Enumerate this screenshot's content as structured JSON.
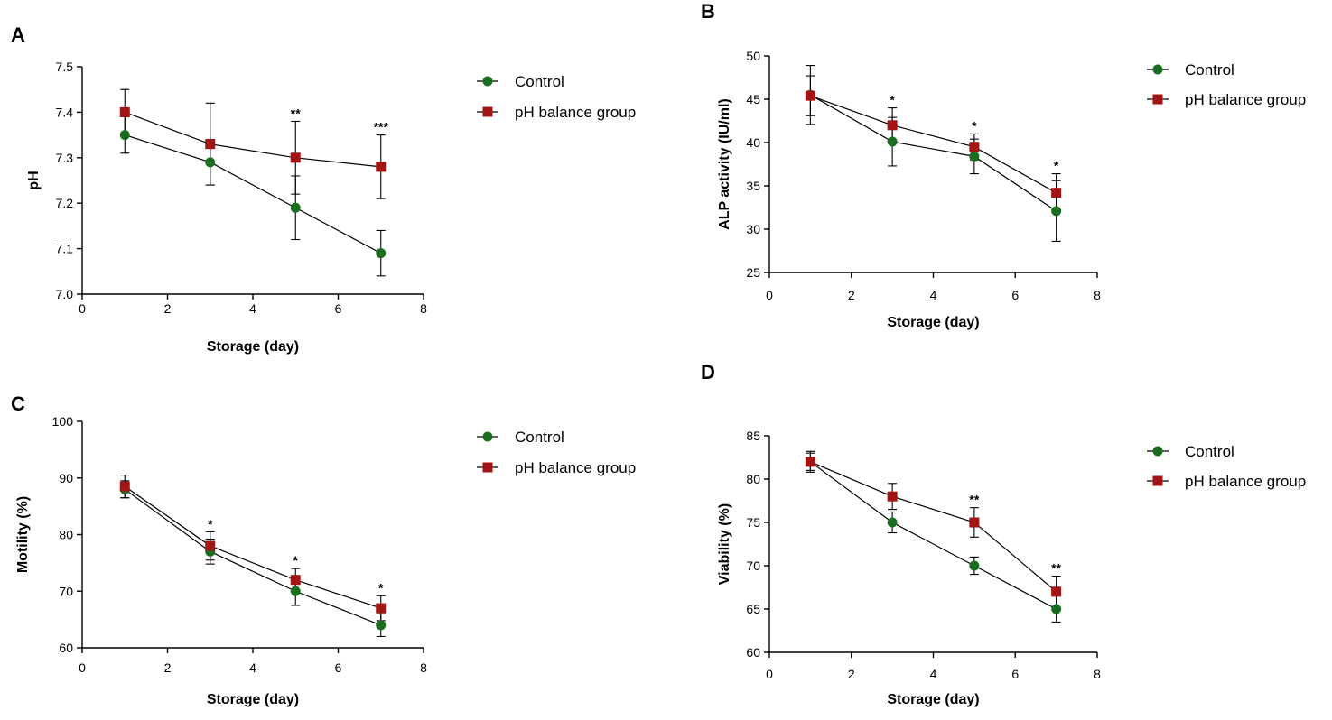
{
  "colors": {
    "control": "#1b6e20",
    "ph_balance": "#a31515",
    "axis": "#000000"
  },
  "chart_data": [
    {
      "panel": "A",
      "type": "line",
      "xlabel": "Storage (day)",
      "ylabel": "pH",
      "xlim": [
        0,
        8
      ],
      "ylim": [
        7.0,
        7.5
      ],
      "xticks": [
        0,
        2,
        4,
        6,
        8
      ],
      "xtick_labels": [
        "0",
        "2",
        "4",
        "6",
        "8"
      ],
      "yticks": [
        7.0,
        7.1,
        7.2,
        7.3,
        7.4,
        7.5
      ],
      "ytick_labels": [
        "7.0",
        "7.1",
        "7.2",
        "7.3",
        "7.4",
        "7.5"
      ],
      "x": [
        1,
        3,
        5,
        7
      ],
      "series": [
        {
          "name": "Control",
          "marker": "circle",
          "values": [
            7.35,
            7.29,
            7.19,
            7.09
          ],
          "err": [
            0.04,
            0.05,
            0.07,
            0.05
          ]
        },
        {
          "name": "pH balance group",
          "marker": "square",
          "values": [
            7.4,
            7.33,
            7.3,
            7.28
          ],
          "err": [
            0.05,
            0.09,
            0.08,
            0.07
          ]
        }
      ],
      "annotations": [
        {
          "x": 5,
          "text": "**"
        },
        {
          "x": 7,
          "text": "***"
        }
      ],
      "legend": "right"
    },
    {
      "panel": "B",
      "type": "line",
      "xlabel": "Storage (day)",
      "ylabel": "ALP activity (IU/ml)",
      "xlim": [
        0,
        8
      ],
      "ylim": [
        25,
        50
      ],
      "xticks": [
        0,
        2,
        4,
        6,
        8
      ],
      "xtick_labels": [
        "0",
        "2",
        "4",
        "6",
        "8"
      ],
      "yticks": [
        25,
        30,
        35,
        40,
        45,
        50
      ],
      "ytick_labels": [
        "25",
        "30",
        "35",
        "40",
        "45",
        "50"
      ],
      "x": [
        1,
        3,
        5,
        7
      ],
      "series": [
        {
          "name": "Control",
          "marker": "circle",
          "values": [
            45.5,
            40.1,
            38.4,
            32.1
          ],
          "err": [
            3.4,
            2.8,
            2.0,
            3.5
          ]
        },
        {
          "name": "pH balance group",
          "marker": "square",
          "values": [
            45.4,
            42.0,
            39.5,
            34.2
          ],
          "err": [
            2.3,
            2.0,
            1.5,
            2.2
          ]
        }
      ],
      "annotations": [
        {
          "x": 3,
          "text": "*"
        },
        {
          "x": 5,
          "text": "*"
        },
        {
          "x": 7,
          "text": "*"
        }
      ],
      "legend": "right"
    },
    {
      "panel": "C",
      "type": "line",
      "xlabel": "Storage (day)",
      "ylabel": "Motility (%)",
      "xlim": [
        0,
        8
      ],
      "ylim": [
        60,
        100
      ],
      "xticks": [
        0,
        2,
        4,
        6,
        8
      ],
      "xtick_labels": [
        "0",
        "2",
        "4",
        "6",
        "8"
      ],
      "yticks": [
        60,
        70,
        80,
        90,
        100
      ],
      "ytick_labels": [
        "60",
        "70",
        "80",
        "90",
        "100"
      ],
      "x": [
        1,
        3,
        5,
        7
      ],
      "series": [
        {
          "name": "Control",
          "marker": "circle",
          "values": [
            88,
            77,
            70,
            64
          ],
          "err": [
            1.5,
            2.2,
            2.5,
            2.0
          ]
        },
        {
          "name": "pH balance group",
          "marker": "square",
          "values": [
            88.5,
            78,
            72,
            67
          ],
          "err": [
            2.0,
            2.5,
            2.0,
            2.2
          ]
        }
      ],
      "annotations": [
        {
          "x": 3,
          "text": "*"
        },
        {
          "x": 5,
          "text": "*"
        },
        {
          "x": 7,
          "text": "*"
        }
      ],
      "legend": "right"
    },
    {
      "panel": "D",
      "type": "line",
      "xlabel": "Storage (day)",
      "ylabel": "Viability (%)",
      "xlim": [
        0,
        8
      ],
      "ylim": [
        60,
        85
      ],
      "xticks": [
        0,
        2,
        4,
        6,
        8
      ],
      "xtick_labels": [
        "0",
        "2",
        "4",
        "6",
        "8"
      ],
      "yticks": [
        60,
        65,
        70,
        75,
        80,
        85
      ],
      "ytick_labels": [
        "60",
        "65",
        "70",
        "75",
        "80",
        "85"
      ],
      "x": [
        1,
        3,
        5,
        7
      ],
      "series": [
        {
          "name": "Control",
          "marker": "circle",
          "values": [
            82,
            75,
            70,
            65
          ],
          "err": [
            1.2,
            1.2,
            1.0,
            1.5
          ]
        },
        {
          "name": "pH balance group",
          "marker": "square",
          "values": [
            82,
            78,
            75,
            67
          ],
          "err": [
            1.0,
            1.5,
            1.7,
            1.8
          ]
        }
      ],
      "annotations": [
        {
          "x": 5,
          "text": "**"
        },
        {
          "x": 7,
          "text": "**"
        }
      ],
      "legend": "right"
    }
  ]
}
